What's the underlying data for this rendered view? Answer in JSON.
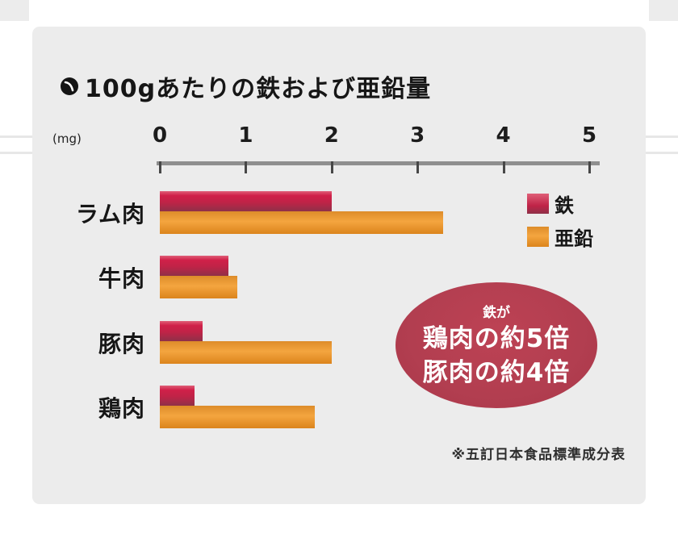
{
  "window": {
    "background": "#ffffff",
    "card_background": "#ececec"
  },
  "title": {
    "bullet_icon": "swirl-bullet",
    "text": "100gあたりの鉄および亜鉛量"
  },
  "axis": {
    "unit_label": "(mg)",
    "tick_labels": [
      "0",
      "1",
      "2",
      "3",
      "4",
      "5"
    ]
  },
  "legend": {
    "items": [
      {
        "label": "鉄",
        "color": "#c02347"
      },
      {
        "label": "亜鉛",
        "color": "#ec9527"
      }
    ]
  },
  "chart_data": {
    "type": "bar",
    "orientation": "horizontal",
    "title": "100gあたりの鉄および亜鉛量",
    "unit": "mg",
    "xlabel": "(mg)",
    "xlim": [
      0,
      5
    ],
    "x_ticks": [
      0,
      1,
      2,
      3,
      4,
      5
    ],
    "grid": false,
    "categories": [
      "ラム肉",
      "牛肉",
      "豚肉",
      "鶏肉"
    ],
    "series": [
      {
        "name": "鉄",
        "color": "#c02347",
        "values": [
          2.0,
          0.8,
          0.5,
          0.4
        ]
      },
      {
        "name": "亜鉛",
        "color": "#ec9527",
        "values": [
          3.3,
          0.9,
          2.0,
          1.8
        ]
      }
    ],
    "legend_position": "upper-right",
    "annotation": "鉄が 鶏肉の約5倍 豚肉の約4倍",
    "source_note": "※五訂日本食品標準成分表"
  },
  "callout": {
    "top_text": "鉄が",
    "line1": "鶏肉の約5倍",
    "line2": "豚肉の約4倍",
    "background": "#b23e50",
    "text_color": "#ffffff"
  },
  "footnote": {
    "text": "※五訂日本食品標準成分表"
  }
}
